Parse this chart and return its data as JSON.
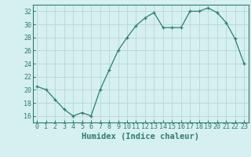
{
  "x": [
    0,
    1,
    2,
    3,
    4,
    5,
    6,
    7,
    8,
    9,
    10,
    11,
    12,
    13,
    14,
    15,
    16,
    17,
    18,
    19,
    20,
    21,
    22,
    23
  ],
  "y": [
    20.5,
    20.0,
    18.5,
    17.0,
    16.0,
    16.5,
    16.0,
    20.0,
    23.0,
    26.0,
    28.0,
    29.8,
    31.0,
    31.8,
    29.5,
    29.5,
    29.5,
    32.0,
    32.0,
    32.5,
    31.8,
    30.3,
    27.8,
    24.0
  ],
  "line_color": "#2e7d6e",
  "marker": "+",
  "bg_color": "#d6f0ef",
  "grid_color": "#b8dbd8",
  "xlabel": "Humidex (Indice chaleur)",
  "ylim": [
    15,
    33
  ],
  "xlim": [
    -0.5,
    23.5
  ],
  "yticks": [
    16,
    18,
    20,
    22,
    24,
    26,
    28,
    30,
    32
  ],
  "xticks": [
    0,
    1,
    2,
    3,
    4,
    5,
    6,
    7,
    8,
    9,
    10,
    11,
    12,
    13,
    14,
    15,
    16,
    17,
    18,
    19,
    20,
    21,
    22,
    23
  ],
  "tick_color": "#2e7d6e",
  "label_fontsize": 7.5,
  "tick_fontsize": 6.0
}
